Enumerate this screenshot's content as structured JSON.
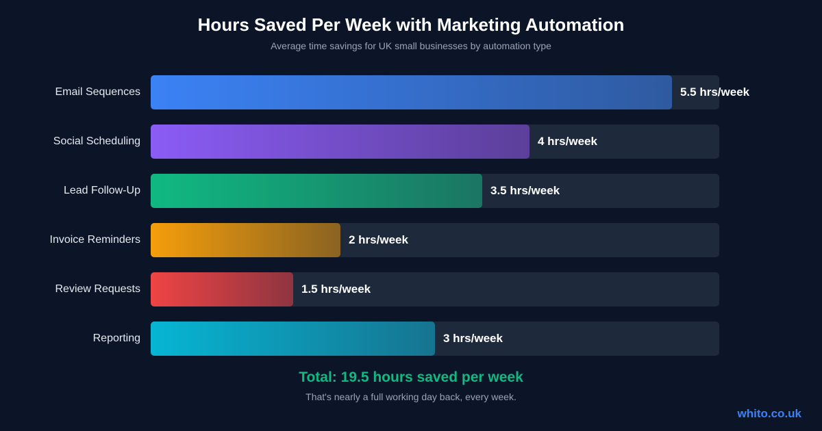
{
  "chart_data": {
    "type": "bar",
    "orientation": "horizontal",
    "title": "Hours Saved Per Week with Marketing Automation",
    "subtitle": "Average time savings for UK small businesses by automation type",
    "categories": [
      "Email Sequences",
      "Social Scheduling",
      "Lead Follow-Up",
      "Invoice Reminders",
      "Review Requests",
      "Reporting"
    ],
    "values": [
      5.5,
      4,
      3.5,
      2,
      1.5,
      3
    ],
    "value_labels": [
      "5.5 hrs/week",
      "4 hrs/week",
      "3.5 hrs/week",
      "2 hrs/week",
      "1.5 hrs/week",
      "3 hrs/week"
    ],
    "colors": [
      [
        "#3b82f6",
        "#2f5aa0"
      ],
      [
        "#8b5cf6",
        "#5b3f99"
      ],
      [
        "#10b981",
        "#1b7562"
      ],
      [
        "#f59e0b",
        "#8a6322"
      ],
      [
        "#ef4444",
        "#8e3541"
      ],
      [
        "#06b6d4",
        "#167490"
      ]
    ],
    "xlim": [
      0,
      6
    ],
    "grid": false,
    "legend": "none"
  },
  "total": "Total: 19.5 hours saved per week",
  "tagline": "That's nearly a full working day back, every week.",
  "brand": "whito.co.uk"
}
